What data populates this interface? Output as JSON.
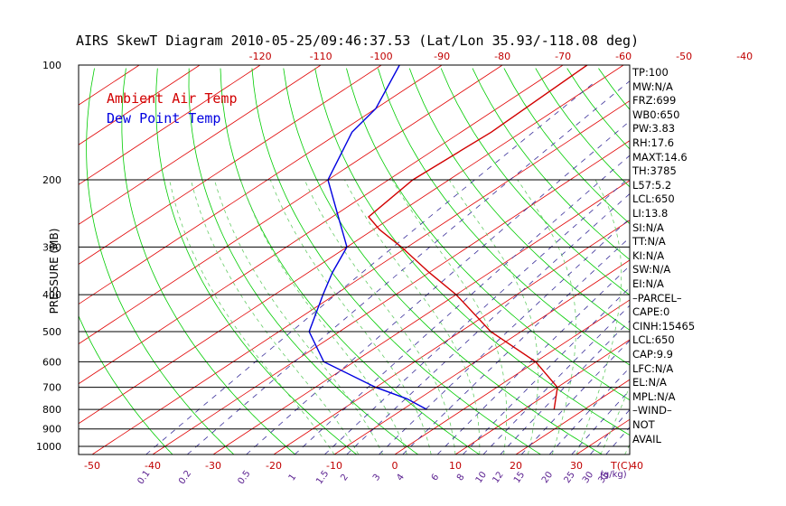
{
  "title": "AIRS SkewT Diagram 2010-05-25/09:46:37.53 (Lat/Lon 35.93/-118.08 deg)",
  "legend": {
    "ambient": "Ambient Air Temp",
    "dewpoint": "Dew Point Temp"
  },
  "colors": {
    "ambient": "#d10000",
    "dewpoint": "#0000e0",
    "dry_adiabat": "#00cc00",
    "moist_adiabat": "#66cc66",
    "isotherm": "#e00000",
    "mixing_ratio": "#3a2f9a",
    "axis_label": "#c00000",
    "mixing_label": "#5a2090"
  },
  "indices": [
    "TP:100",
    "MW:N/A",
    "FRZ:699",
    "WB0:650",
    "PW:3.83",
    "RH:17.6",
    "MAXT:14.6",
    "TH:3785",
    "L57:5.2",
    "LCL:650",
    "LI:13.8",
    "SI:N/A",
    "TT:N/A",
    "KI:N/A",
    "SW:N/A",
    "EI:N/A",
    "–PARCEL–",
    "CAPE:0",
    "CINH:15465",
    "LCL:650",
    "CAP:9.9",
    "LFC:N/A",
    "EL:N/A",
    "MPL:N/A",
    "–WIND–",
    "NOT",
    "AVAIL"
  ],
  "chart_data": {
    "type": "line",
    "title": "AIRS SkewT Diagram 2010-05-25/09:46:37.53 (Lat/Lon 35.93/-118.08 deg)",
    "ylabel": "PRESSURE (MB)",
    "xlabel": "T(C)",
    "pressure_ticks": [
      100,
      200,
      300,
      400,
      500,
      600,
      700,
      800,
      900,
      1000
    ],
    "pressure_tick_labels": [
      "100",
      "200",
      "300",
      "400",
      "500",
      "600",
      "700",
      "800",
      "900",
      "1000"
    ],
    "bottom_temp_ticks": [
      -50,
      -40,
      -30,
      -20,
      -10,
      0,
      10,
      20,
      30,
      40
    ],
    "bottom_temp_labels": [
      "-50",
      "-40",
      "-30",
      "-20",
      "-10",
      "0",
      "10",
      "20",
      "30",
      "40"
    ],
    "top_temp_ticks": [
      -120,
      -110,
      -100,
      -90,
      -80,
      -70,
      -60,
      -50,
      -40
    ],
    "top_temp_labels": [
      "-120",
      "-110",
      "-100",
      "-90",
      "-80",
      "-70",
      "-60",
      "-50",
      "-40"
    ],
    "mixing_ratio_labels": [
      "0.1",
      "0.2",
      "0.5",
      "1",
      "1.5",
      "2",
      "3",
      "4",
      "6",
      "8",
      "10",
      "12",
      "15",
      "20",
      "25",
      "30",
      "35"
    ],
    "mixing_ratio_unit": "(g/kg)",
    "series": [
      {
        "name": "Ambient Air Temp",
        "points": [
          {
            "p": 800,
            "t": 15
          },
          {
            "p": 700,
            "t": 10
          },
          {
            "p": 600,
            "t": 0
          },
          {
            "p": 500,
            "t": -15
          },
          {
            "p": 400,
            "t": -30
          },
          {
            "p": 350,
            "t": -40
          },
          {
            "p": 300,
            "t": -51
          },
          {
            "p": 270,
            "t": -59
          },
          {
            "p": 250,
            "t": -64
          },
          {
            "p": 200,
            "t": -66
          },
          {
            "p": 150,
            "t": -65
          },
          {
            "p": 100,
            "t": -66
          }
        ]
      },
      {
        "name": "Dew Point Temp",
        "points": [
          {
            "p": 800,
            "t": -6
          },
          {
            "p": 750,
            "t": -12
          },
          {
            "p": 700,
            "t": -20
          },
          {
            "p": 600,
            "t": -35
          },
          {
            "p": 500,
            "t": -45
          },
          {
            "p": 400,
            "t": -52
          },
          {
            "p": 350,
            "t": -56
          },
          {
            "p": 300,
            "t": -60
          },
          {
            "p": 250,
            "t": -69
          },
          {
            "p": 200,
            "t": -80
          },
          {
            "p": 150,
            "t": -88
          },
          {
            "p": 130,
            "t": -90
          },
          {
            "p": 100,
            "t": -97
          }
        ]
      }
    ],
    "grid": true,
    "legend_position": "top-left"
  }
}
